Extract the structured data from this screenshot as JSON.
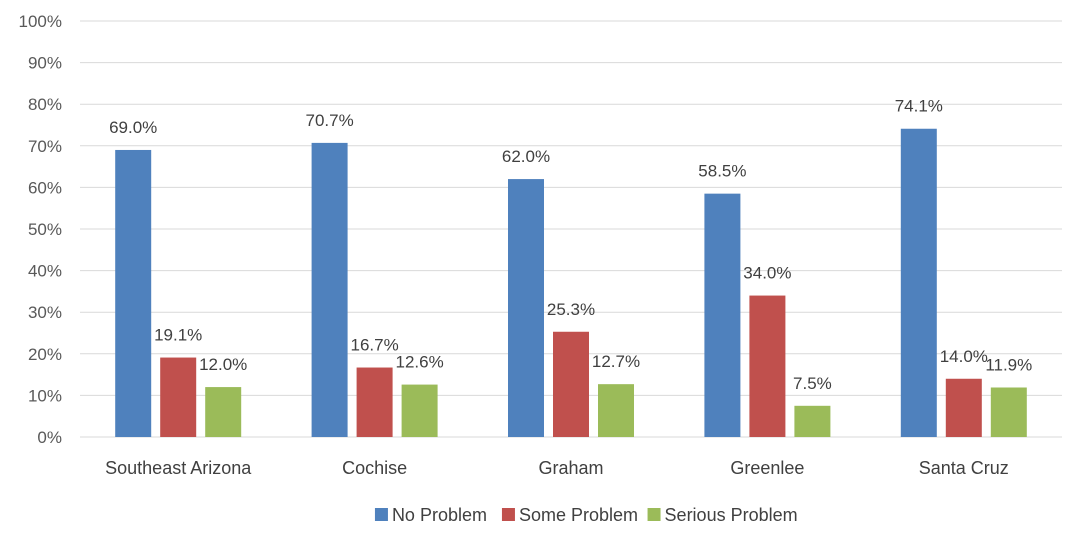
{
  "chart_data": {
    "type": "bar",
    "categories": [
      "Southeast Arizona",
      "Cochise",
      "Graham",
      "Greenlee",
      "Santa Cruz"
    ],
    "series": [
      {
        "name": "No Problem",
        "color": "#4f81bd",
        "values": [
          69.0,
          70.7,
          62.0,
          58.5,
          74.1
        ],
        "labels": [
          "69.0%",
          "70.7%",
          "62.0%",
          "58.5%",
          "74.1%"
        ]
      },
      {
        "name": "Some Problem",
        "color": "#c0504d",
        "values": [
          19.1,
          16.7,
          25.3,
          34.0,
          14.0
        ],
        "labels": [
          "19.1%",
          "16.7%",
          "25.3%",
          "34.0%",
          "14.0%"
        ]
      },
      {
        "name": "Serious Problem",
        "color": "#9bbb59",
        "values": [
          12.0,
          12.6,
          12.7,
          7.5,
          11.9
        ],
        "labels": [
          "12.0%",
          "12.6%",
          "12.7%",
          "7.5%",
          "11.9%"
        ]
      }
    ],
    "y_ticks": [
      "0%",
      "10%",
      "20%",
      "30%",
      "40%",
      "50%",
      "60%",
      "70%",
      "80%",
      "90%",
      "100%"
    ],
    "ylim": [
      0,
      100
    ],
    "grid": true,
    "legend_position": "bottom"
  }
}
